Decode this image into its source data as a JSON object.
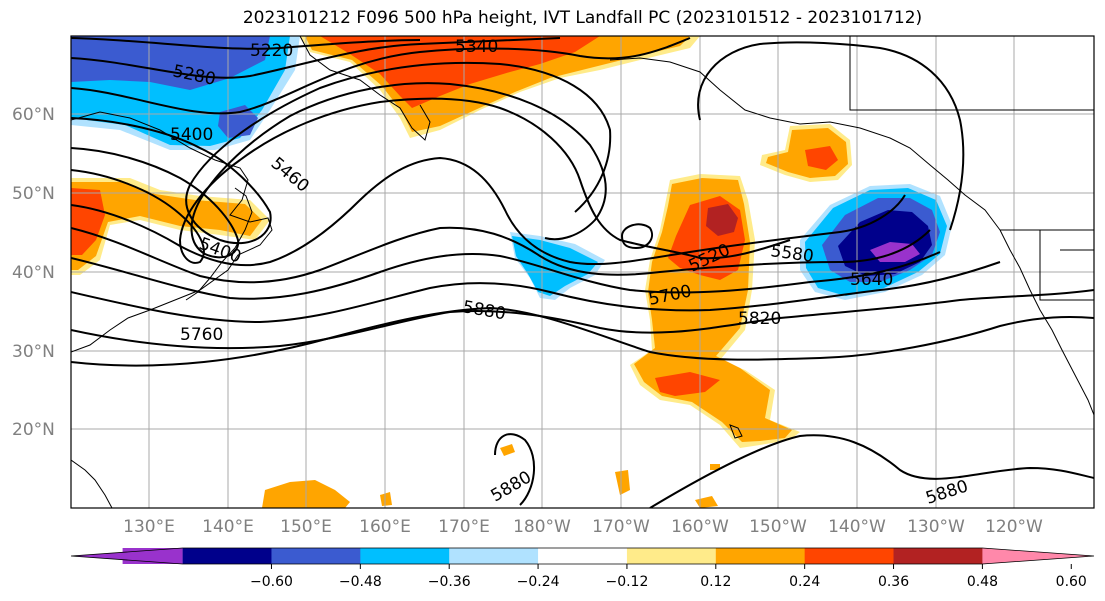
{
  "title": "2023101212 F096 500 hPa height, IVT Landfall PC (2023101512 - 2023101712)",
  "lat_labels": [
    "60°N",
    "50°N",
    "40°N",
    "30°N",
    "20°N"
  ],
  "lon_labels": [
    "130°E",
    "140°E",
    "150°E",
    "160°E",
    "170°E",
    "180°W",
    "170°W",
    "160°W",
    "150°W",
    "140°W",
    "130°W",
    "120°W"
  ],
  "contour_labels": [
    "5220",
    "5340",
    "5280",
    "5400",
    "5460",
    "5400",
    "5760",
    "5880",
    "5520",
    "5580",
    "5640",
    "5700",
    "5820",
    "5880",
    "5880"
  ],
  "colorbar": {
    "colors": [
      "#9932CC",
      "#00008B",
      "#3B5BD0",
      "#00BFFF",
      "#B0E2FF",
      "#FFFFFF",
      "#FFEB8A",
      "#FFA500",
      "#FF4500",
      "#B22222",
      "#FF88AA"
    ],
    "ticks": [
      "−0.60",
      "−0.48",
      "−0.36",
      "−0.24",
      "−0.12",
      "0.12",
      "0.24",
      "0.36",
      "0.48",
      "0.60"
    ]
  }
}
